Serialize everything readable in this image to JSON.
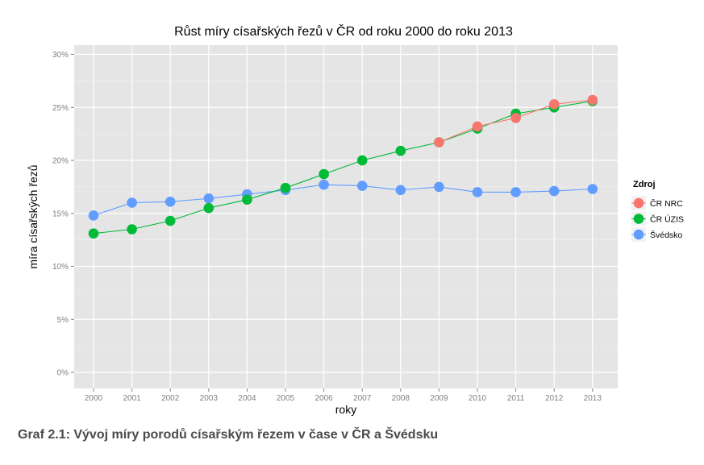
{
  "chart_data": {
    "type": "line",
    "title": "Růst míry císařských řezů v ČR od roku 2000 do roku 2013",
    "xlabel": "roky",
    "ylabel": "míra císařských řezů",
    "categories": [
      "2000",
      "2001",
      "2002",
      "2003",
      "2004",
      "2005",
      "2006",
      "2007",
      "2008",
      "2009",
      "2010",
      "2011",
      "2012",
      "2013"
    ],
    "ylim": [
      0,
      30
    ],
    "yticks": [
      0,
      5,
      10,
      15,
      20,
      25,
      30
    ],
    "ytick_labels": [
      "0%",
      "5%",
      "10%",
      "15%",
      "20%",
      "25%",
      "30%"
    ],
    "grid": true,
    "legend": {
      "title": "Zdroj",
      "position": "right"
    },
    "series": [
      {
        "name": "ČR NRC",
        "color": "#f8766d",
        "values": [
          null,
          null,
          null,
          null,
          null,
          null,
          null,
          null,
          null,
          21.7,
          23.2,
          24.0,
          25.3,
          25.7
        ]
      },
      {
        "name": "ČR ÚZIS",
        "color": "#00ba38",
        "values": [
          13.1,
          13.5,
          14.3,
          15.5,
          16.3,
          17.4,
          18.7,
          20.0,
          20.9,
          21.7,
          23.0,
          24.4,
          25.0,
          25.6
        ]
      },
      {
        "name": "Švédsko",
        "color": "#619cff",
        "values": [
          14.8,
          16.0,
          16.1,
          16.4,
          16.8,
          17.2,
          17.7,
          17.6,
          17.2,
          17.5,
          17.0,
          17.0,
          17.1,
          17.3
        ]
      }
    ]
  },
  "caption": "Graf 2.1: Vývoj míry porodů císařským řezem v čase v ČR a Švédsku"
}
